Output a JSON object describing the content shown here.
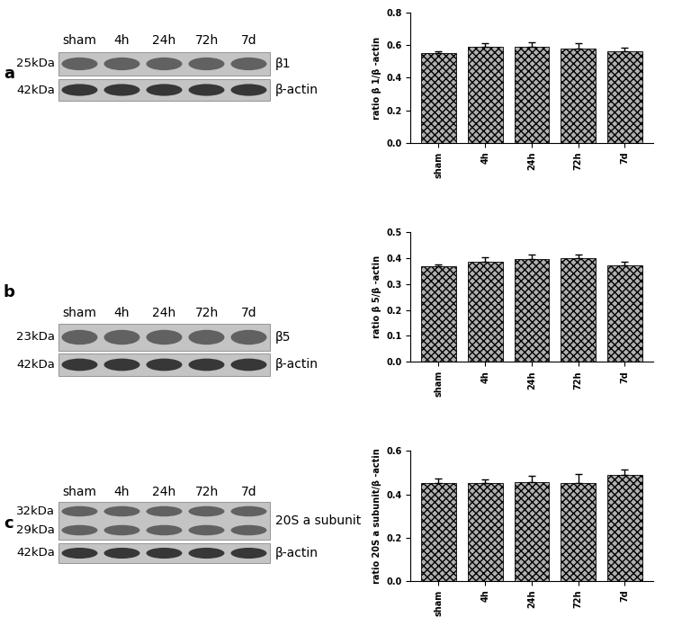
{
  "chart_data": [
    {
      "type": "bar",
      "categories": [
        "sham",
        "4h",
        "24h",
        "72h",
        "7d"
      ],
      "values": [
        0.55,
        0.59,
        0.59,
        0.58,
        0.565
      ],
      "errors": [
        0.015,
        0.02,
        0.03,
        0.035,
        0.02
      ],
      "y_label": "ratio β 1/β -actin",
      "color": "#b0b0b0",
      "ylim": [
        0.0,
        0.8
      ],
      "yticks": [
        0.0,
        0.2,
        0.4,
        0.6,
        0.8
      ]
    },
    {
      "type": "bar",
      "categories": [
        "sham",
        "4h",
        "24h",
        "72h",
        "7d"
      ],
      "values": [
        0.367,
        0.385,
        0.395,
        0.398,
        0.372
      ],
      "errors": [
        0.008,
        0.017,
        0.018,
        0.013,
        0.012
      ],
      "y_label": "ratio β 5/β -actin",
      "color": "#b0b0b0",
      "ylim": [
        0.0,
        0.5
      ],
      "yticks": [
        0.0,
        0.1,
        0.2,
        0.3,
        0.4,
        0.5
      ]
    },
    {
      "type": "bar",
      "categories": [
        "sham",
        "4h",
        "24h",
        "72h",
        "7d"
      ],
      "values": [
        0.452,
        0.45,
        0.455,
        0.452,
        0.49
      ],
      "errors": [
        0.02,
        0.02,
        0.03,
        0.04,
        0.025
      ],
      "y_label": "ratio 20S a subunit/β -actin",
      "color": "#b0b0b0",
      "ylim": [
        0.0,
        0.6
      ],
      "yticks": [
        0.0,
        0.2,
        0.4,
        0.6
      ]
    }
  ],
  "blots": [
    {
      "panel": "a",
      "lanes": [
        "sham",
        "4h",
        "24h",
        "72h",
        "7d"
      ],
      "rows": [
        {
          "sizes": [
            "25kDa"
          ],
          "name": "β1"
        },
        {
          "sizes": [
            "42kDa"
          ],
          "name": "β-actin"
        }
      ]
    },
    {
      "panel": "b",
      "lanes": [
        "sham",
        "4h",
        "24h",
        "72h",
        "7d"
      ],
      "rows": [
        {
          "sizes": [
            "23kDa"
          ],
          "name": "β5"
        },
        {
          "sizes": [
            "42kDa"
          ],
          "name": "β-actin"
        }
      ]
    },
    {
      "panel": "c",
      "lanes": [
        "sham",
        "4h",
        "24h",
        "72h",
        "7d"
      ],
      "rows": [
        {
          "sizes": [
            "32kDa",
            "29kDa"
          ],
          "name": "20S a subunit"
        },
        {
          "sizes": [
            "42kDa"
          ],
          "name": "β-actin"
        }
      ]
    }
  ]
}
